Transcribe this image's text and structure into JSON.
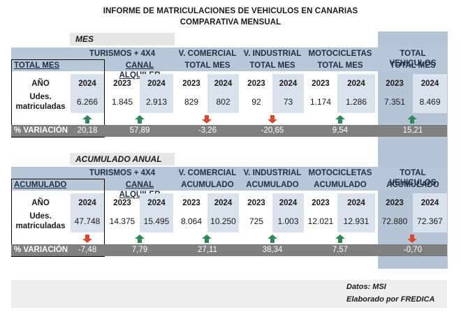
{
  "title": "INFORME DE MATRICULACIONES DE VEHICULOS EN CANARIAS",
  "subtitle": "COMPARATIVA MENSUAL",
  "colors": {
    "header_band": "#b8c7d8",
    "value_cell": "#d9e1ec",
    "variation_row": "#7f7f7f",
    "up_arrow": "#2e8b57",
    "down_arrow": "#d9482b"
  },
  "mensual": {
    "section_label": "MES",
    "row_label": "TOTAL MES",
    "headers": {
      "turismos_line1": "TURISMOS + 4X4",
      "turismos_line2": "CANAL ALQUILER",
      "comercial_line1": "V. COMERCIAL",
      "comercial_line2": "TOTAL MES",
      "industrial_line1": "V. INDUSTRIAL",
      "industrial_line2": "TOTAL MES",
      "moto_line1": "MOTOCICLETAS",
      "moto_line2": "TOTAL MES",
      "total_line1": "TOTAL VEHICULOS",
      "total_line2": "TOTAL MES"
    },
    "year_label": "AÑO",
    "udes_label_1": "Udes.",
    "udes_label_2": "matriculadas",
    "years": {
      "tur_total": "2024",
      "alq_2023": "2023",
      "alq_2024": "2024",
      "com_2023": "2023",
      "com_2024": "2024",
      "ind_2023": "2023",
      "ind_2024": "2024",
      "mot_2023": "2023",
      "mot_2024": "2024",
      "tot_2023": "2023",
      "tot_2024": "2024"
    },
    "values": {
      "tur_total": "6.266",
      "alq_2023": "1.845",
      "alq_2024": "2.913",
      "com_2023": "829",
      "com_2024": "802",
      "ind_2023": "92",
      "ind_2024": "73",
      "mot_2023": "1.174",
      "mot_2024": "1.286",
      "tot_2023": "7.351",
      "tot_2024": "8.469"
    },
    "arrows": {
      "tur": "up",
      "alq": "up",
      "com": "down",
      "ind": "down",
      "mot": "up",
      "tot": "up"
    },
    "variation_label": "% VARIACIÓN",
    "variation": {
      "tur": "20,18",
      "alq": "57,89",
      "com": "-3,26",
      "ind": "-20,65",
      "mot": "9,54",
      "tot": "15,21"
    }
  },
  "acumulado": {
    "section_label": "ACUMULADO ANUAL",
    "row_label": "ACUMULADO",
    "headers": {
      "turismos_line1": "TURISMOS + 4X4",
      "turismos_line2": "CANAL ALQUILER",
      "comercial_line1": "V. COMERCIAL",
      "comercial_line2": "ACUMULADO",
      "industrial_line1": "V. INDUSTRIAL",
      "industrial_line2": "ACUMULADO",
      "moto_line1": "MOTOCICLETAS",
      "moto_line2": "ACUMULADO",
      "total_line1": "TOTAL VEHICULOS",
      "total_line2": "ACUMULADO"
    },
    "year_label": "AÑO",
    "udes_label_1": "Udes.",
    "udes_label_2": "matriculadas",
    "years": {
      "tur_total": "2024",
      "alq_2023": "2023",
      "alq_2024": "2024",
      "com_2023": "2023",
      "com_2024": "2024",
      "ind_2023": "2023",
      "ind_2024": "2024",
      "mot_2023": "2023",
      "mot_2024": "2024",
      "tot_2023": "2023",
      "tot_2024": "2024"
    },
    "values": {
      "tur_total": "47.748",
      "alq_2023": "14.375",
      "alq_2024": "15.495",
      "com_2023": "8.064",
      "com_2024": "10.250",
      "ind_2023": "725",
      "ind_2024": "1.003",
      "mot_2023": "12.021",
      "mot_2024": "12.931",
      "tot_2023": "72.880",
      "tot_2024": "72.367"
    },
    "arrows": {
      "tur": "down",
      "alq": "up",
      "com": "up",
      "ind": "up",
      "mot": "up",
      "tot": "down"
    },
    "variation_label": "% VARIACIÓN",
    "variation": {
      "tur": "-7,48",
      "alq": "7,79",
      "com": "27,11",
      "ind": "38,34",
      "mot": "7,57",
      "tot": "-0,70"
    }
  },
  "footer": {
    "source": "Datos: MSI",
    "author": "Elaborado por  FREDICA"
  }
}
